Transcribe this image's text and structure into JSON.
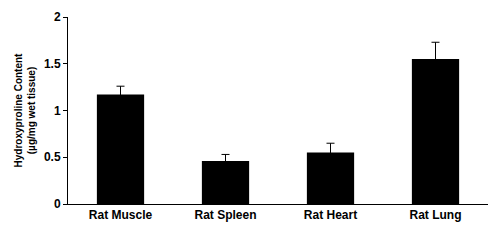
{
  "chart_data": {
    "type": "bar",
    "ylabel": [
      "Hydroxyproline Content",
      "(µg/mg wet tissue)"
    ],
    "categories": [
      "Rat Muscle",
      "Rat Spleen",
      "Rat Heart",
      "Rat Lung"
    ],
    "values": [
      1.17,
      0.46,
      0.55,
      1.55
    ],
    "errors": [
      0.09,
      0.07,
      0.1,
      0.18
    ],
    "color": "#000000",
    "ylim": [
      0,
      2
    ],
    "yticks": [
      0,
      0.5,
      1,
      1.5,
      2
    ],
    "grid": false
  }
}
